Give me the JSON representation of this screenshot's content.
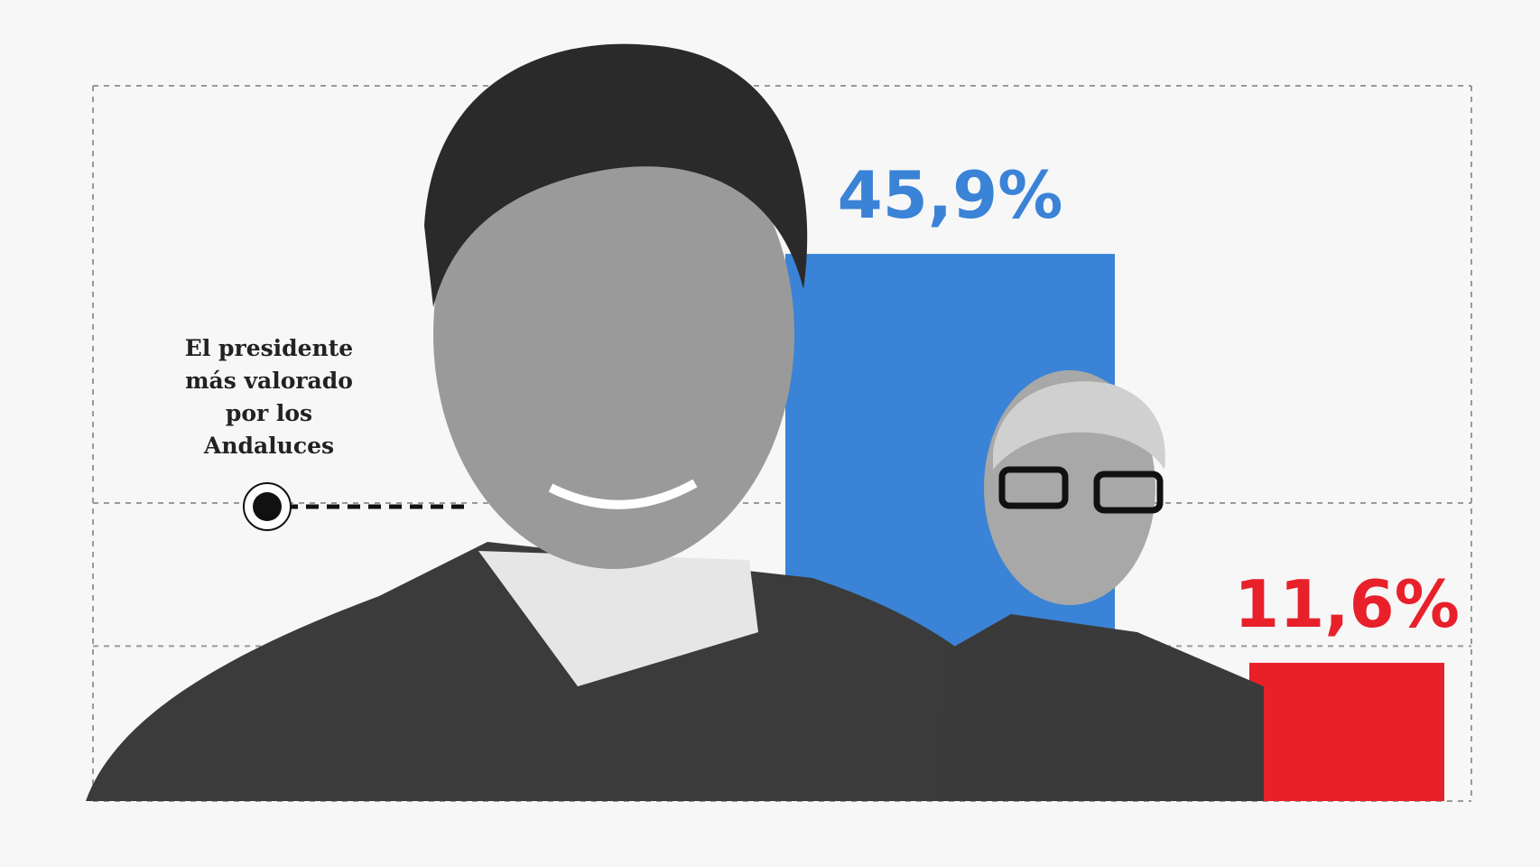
{
  "chart_data": {
    "type": "bar",
    "annotation": [
      "El presidente",
      "más valorado",
      "por los",
      "Andaluces"
    ],
    "categories": [
      null,
      null
    ],
    "values": [
      45.9,
      11.6
    ],
    "value_labels": [
      "45,9%",
      "11,6%"
    ],
    "colors": [
      "#3a83d6",
      "#e8202a"
    ],
    "ylim": [
      0,
      60
    ],
    "yticks": [
      0,
      13,
      25,
      60
    ],
    "grid": true
  }
}
